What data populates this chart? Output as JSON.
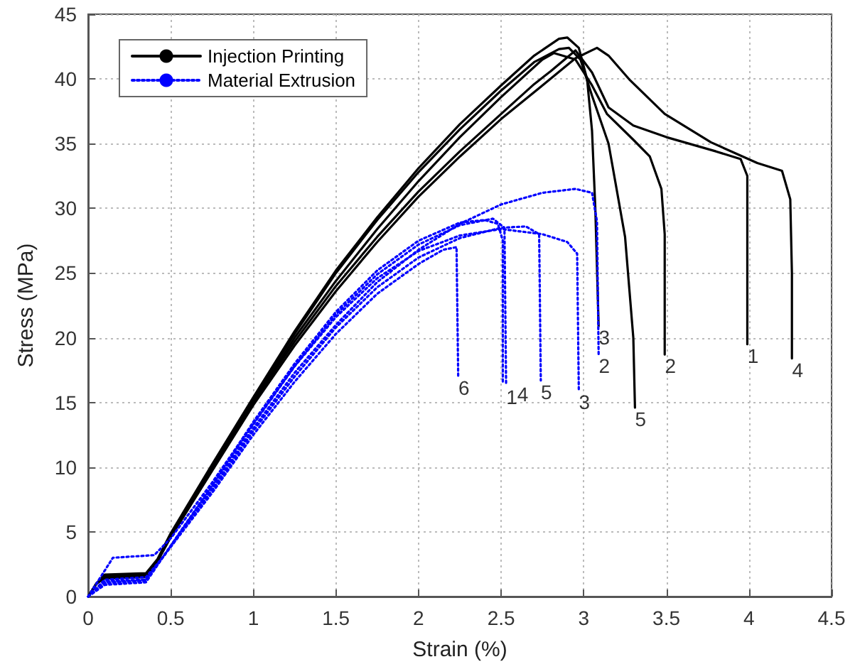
{
  "chart_data": {
    "type": "line",
    "xlabel": "Strain (%)",
    "ylabel": "Stress (MPa)",
    "xlim": [
      0,
      4.5
    ],
    "ylim": [
      0,
      45
    ],
    "xticks": [
      0,
      0.5,
      1,
      1.5,
      2,
      2.5,
      3,
      3.5,
      4,
      4.5
    ],
    "yticks": [
      0,
      5,
      10,
      15,
      20,
      25,
      30,
      35,
      40,
      45
    ],
    "grid": true,
    "legend": "top left",
    "marker": "none",
    "series": [
      {
        "name": "Injection Printing",
        "color": "#000000",
        "line_style": "solid",
        "x": [
          0,
          0.05,
          0.1,
          0.35,
          0.42,
          0.5,
          0.75,
          1,
          1.25,
          1.5,
          1.75,
          2,
          2.25,
          2.5,
          2.7,
          2.8,
          2.95,
          3.05,
          3.15,
          3.3,
          3.5,
          3.8,
          3.95,
          3.99,
          3.99
        ],
        "values": [
          0,
          1,
          1.6,
          1.7,
          2.8,
          4.6,
          9.8,
          15,
          19.7,
          24,
          27.8,
          31.3,
          34.4,
          37.3,
          39.6,
          40.6,
          42.2,
          40.5,
          37.8,
          36.4,
          35.5,
          34.4,
          33.8,
          32.5,
          19.5
        ]
      },
      {
        "color": "#000000",
        "line_style": "solid",
        "x": [
          0,
          0.05,
          0.1,
          0.35,
          0.42,
          0.5,
          0.75,
          1,
          1.25,
          1.5,
          1.75,
          2,
          2.25,
          2.5,
          2.75,
          2.82,
          2.95,
          3.05,
          3.14,
          3.3,
          3.4,
          3.47,
          3.49,
          3.49
        ],
        "values": [
          0,
          1,
          1.5,
          1.6,
          2.8,
          4.7,
          9.9,
          15.1,
          20,
          24.4,
          28.4,
          32.1,
          35.5,
          38.6,
          41.5,
          42,
          41.5,
          39.5,
          37.3,
          35.3,
          34,
          31.5,
          28,
          18.7
        ]
      },
      {
        "color": "#000000",
        "line_style": "solid",
        "x": [
          0,
          0.05,
          0.1,
          0.35,
          0.42,
          0.5,
          0.75,
          1,
          1.25,
          1.5,
          1.75,
          2,
          2.25,
          2.5,
          2.7,
          2.85,
          2.9,
          2.97,
          3.02,
          3.05,
          3.07,
          3.09
        ],
        "values": [
          0,
          1,
          1.7,
          1.8,
          2.9,
          4.9,
          10.2,
          15.4,
          20.5,
          25.2,
          29.3,
          33.1,
          36.5,
          39.5,
          41.8,
          43.1,
          43.2,
          42.4,
          40,
          36,
          30,
          20.9
        ]
      },
      {
        "color": "#000000",
        "line_style": "solid",
        "x": [
          0,
          0.05,
          0.1,
          0.35,
          0.42,
          0.5,
          0.75,
          1,
          1.25,
          1.5,
          1.75,
          2,
          2.25,
          2.5,
          2.75,
          2.95,
          3.08,
          3.15,
          3.28,
          3.49,
          3.77,
          4.05,
          4.2,
          4.25,
          4.26,
          4.26
        ],
        "values": [
          0,
          1,
          1.4,
          1.5,
          2.7,
          4.6,
          9.7,
          14.8,
          19.4,
          23.6,
          27.4,
          30.9,
          34,
          36.9,
          39.5,
          41.6,
          42.4,
          41.8,
          39.9,
          37.3,
          35.1,
          33.5,
          32.9,
          30.7,
          25,
          18.4
        ]
      },
      {
        "color": "#000000",
        "line_style": "solid",
        "x": [
          0,
          0.05,
          0.1,
          0.35,
          0.42,
          0.5,
          0.75,
          1,
          1.25,
          1.5,
          1.75,
          2,
          2.25,
          2.5,
          2.7,
          2.85,
          2.91,
          2.98,
          3.05,
          3.15,
          3.25,
          3.3,
          3.31
        ],
        "values": [
          0,
          1,
          1.6,
          1.7,
          2.8,
          4.8,
          10.1,
          15.3,
          20.3,
          25,
          29.1,
          32.8,
          36.1,
          39.1,
          41.3,
          42.3,
          42.4,
          41.5,
          38.7,
          35,
          27.8,
          20,
          14.6
        ]
      },
      {
        "name": "Material Extrusion",
        "color": "#0000ff",
        "line_style": "dotted",
        "x": [
          0,
          0.1,
          0.35,
          0.45,
          0.75,
          1,
          1.25,
          1.5,
          1.75,
          2,
          2.25,
          2.45,
          2.52,
          2.53
        ],
        "values": [
          0,
          1.2,
          1.3,
          3,
          8.5,
          13.3,
          17.8,
          21.8,
          24.9,
          27.2,
          28.7,
          29.2,
          28.5,
          16.3
        ]
      },
      {
        "color": "#0000ff",
        "line_style": "dotted",
        "x": [
          0,
          0.1,
          0.35,
          0.45,
          0.75,
          1,
          1.25,
          1.5,
          1.75,
          2,
          2.25,
          2.5,
          2.75,
          2.95,
          3.05,
          3.08,
          3.09
        ],
        "values": [
          0,
          1,
          1.2,
          3,
          8.3,
          13,
          17.3,
          21,
          24.3,
          26.8,
          28.8,
          30.3,
          31.2,
          31.5,
          31.2,
          29,
          18.7
        ]
      },
      {
        "color": "#0000ff",
        "line_style": "dotted",
        "x": [
          0,
          0.15,
          0.4,
          0.5,
          0.75,
          1,
          1.25,
          1.5,
          1.75,
          2,
          2.25,
          2.5,
          2.75,
          2.9,
          2.96,
          2.97
        ],
        "values": [
          0,
          3,
          3.2,
          4.5,
          8.8,
          13.4,
          17.8,
          21.6,
          24.6,
          26.7,
          27.9,
          28.4,
          28,
          27.4,
          26.5,
          15.9
        ]
      },
      {
        "color": "#0000ff",
        "line_style": "dotted",
        "x": [
          0,
          0.1,
          0.35,
          0.45,
          0.75,
          1,
          1.25,
          1.5,
          1.75,
          2,
          2.25,
          2.4,
          2.48,
          2.51,
          2.51
        ],
        "values": [
          0,
          1.3,
          1.5,
          3,
          8.6,
          13.5,
          18,
          22,
          25.2,
          27.5,
          28.9,
          29.1,
          28.8,
          27.5,
          16.5
        ]
      },
      {
        "color": "#0000ff",
        "line_style": "dotted",
        "x": [
          0,
          0.1,
          0.35,
          0.45,
          0.75,
          1,
          1.25,
          1.5,
          1.75,
          2,
          2.25,
          2.5,
          2.65,
          2.73,
          2.74
        ],
        "values": [
          0,
          1.1,
          1.3,
          3,
          8.2,
          12.8,
          17,
          20.8,
          23.9,
          26.2,
          27.7,
          28.5,
          28.6,
          28,
          16.7
        ]
      },
      {
        "color": "#0000ff",
        "line_style": "dotted",
        "x": [
          0,
          0.1,
          0.35,
          0.45,
          0.75,
          1,
          1.25,
          1.5,
          1.75,
          2,
          2.15,
          2.23,
          2.24
        ],
        "values": [
          0,
          0.9,
          1.1,
          3,
          8,
          12.5,
          16.6,
          20.3,
          23.4,
          25.7,
          26.8,
          27,
          17
        ]
      }
    ],
    "annotations": [
      {
        "text": "1",
        "x": 3.99,
        "y": 19.5
      },
      {
        "text": "2",
        "x": 3.49,
        "y": 18.7
      },
      {
        "text": "3",
        "x": 3.09,
        "y": 20.9
      },
      {
        "text": "4",
        "x": 4.26,
        "y": 18.4
      },
      {
        "text": "5",
        "x": 3.31,
        "y": 14.6
      },
      {
        "text": "1",
        "x": 2.53,
        "y": 16.3
      },
      {
        "text": "2",
        "x": 3.09,
        "y": 18.7
      },
      {
        "text": "3",
        "x": 2.97,
        "y": 15.9
      },
      {
        "text": "4",
        "x": 2.51,
        "y": 16.5
      },
      {
        "text": "5",
        "x": 2.74,
        "y": 16.7
      },
      {
        "text": "6",
        "x": 2.24,
        "y": 17
      }
    ]
  }
}
